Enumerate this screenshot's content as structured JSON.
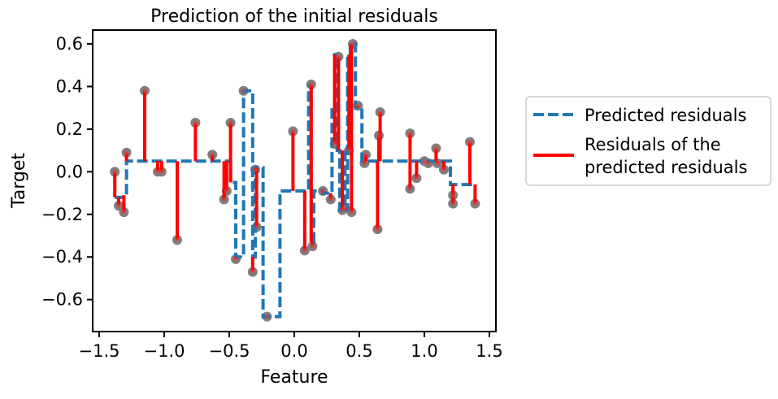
{
  "chart_data": {
    "type": "line",
    "title": "Prediction of the initial residuals",
    "xlabel": "Feature",
    "ylabel": "Target",
    "xlim": [
      -1.55,
      1.55
    ],
    "ylim": [
      -0.75,
      0.665
    ],
    "xticks": [
      -1.5,
      -1.0,
      -0.5,
      0.0,
      0.5,
      1.0,
      1.5
    ],
    "xtick_labels": [
      "−1.5",
      "−1.0",
      "−0.5",
      "0.0",
      "0.5",
      "1.0",
      "1.5"
    ],
    "yticks": [
      -0.6,
      -0.4,
      -0.2,
      0.0,
      0.2,
      0.4,
      0.6
    ],
    "ytick_labels": [
      "−0.6",
      "−0.4",
      "−0.2",
      "0.0",
      "0.2",
      "0.4",
      "0.6"
    ],
    "grid": false,
    "legend": {
      "placement": "outside-right",
      "entries": [
        {
          "label": "Predicted residuals",
          "style": "dashed",
          "color": "#1f77b4"
        },
        {
          "label_lines": [
            "Residuals of the",
            "predicted residuals"
          ],
          "style": "solid",
          "color": "#ff0000"
        }
      ]
    },
    "points": [
      [
        -1.38,
        0.0
      ],
      [
        -1.35,
        -0.16
      ],
      [
        -1.31,
        -0.19
      ],
      [
        -1.29,
        0.09
      ],
      [
        -1.15,
        0.38
      ],
      [
        -1.05,
        0.0
      ],
      [
        -1.02,
        0.0
      ],
      [
        -0.9,
        -0.32
      ],
      [
        -0.76,
        0.23
      ],
      [
        -0.63,
        0.08
      ],
      [
        -0.54,
        -0.13
      ],
      [
        -0.52,
        -0.09
      ],
      [
        -0.49,
        0.23
      ],
      [
        -0.45,
        -0.41
      ],
      [
        -0.39,
        0.38
      ],
      [
        -0.32,
        -0.47
      ],
      [
        -0.3,
        0.01
      ],
      [
        -0.29,
        -0.26
      ],
      [
        -0.21,
        -0.68
      ],
      [
        -0.01,
        0.19
      ],
      [
        0.08,
        -0.37
      ],
      [
        0.13,
        0.41
      ],
      [
        0.14,
        -0.35
      ],
      [
        0.22,
        -0.09
      ],
      [
        0.28,
        -0.13
      ],
      [
        0.31,
        0.13
      ],
      [
        0.34,
        0.54
      ],
      [
        0.37,
        -0.18
      ],
      [
        0.39,
        -0.17
      ],
      [
        0.42,
        0.1
      ],
      [
        0.44,
        -0.19
      ],
      [
        0.45,
        0.6
      ],
      [
        0.49,
        0.31
      ],
      [
        0.54,
        0.04
      ],
      [
        0.55,
        0.08
      ],
      [
        0.64,
        -0.27
      ],
      [
        0.65,
        0.17
      ],
      [
        0.66,
        0.28
      ],
      [
        0.89,
        0.18
      ],
      [
        0.89,
        -0.08
      ],
      [
        0.94,
        -0.03
      ],
      [
        1.0,
        0.05
      ],
      [
        1.03,
        0.04
      ],
      [
        1.09,
        0.11
      ],
      [
        1.1,
        0.04
      ],
      [
        1.15,
        0.01
      ],
      [
        1.22,
        -0.15
      ],
      [
        1.22,
        -0.11
      ],
      [
        1.35,
        0.14
      ],
      [
        1.39,
        -0.15
      ]
    ],
    "series": [
      {
        "name": "Predicted residuals",
        "kind": "step",
        "x": [
          -1.38,
          -1.35,
          -1.31,
          -1.29,
          -0.52,
          -0.49,
          -0.45,
          -0.42,
          -0.39,
          -0.35,
          -0.32,
          -0.3,
          -0.28,
          -0.24,
          -0.21,
          -0.11,
          -0.09,
          0.11,
          0.13,
          0.15,
          0.17,
          0.22,
          0.26,
          0.29,
          0.31,
          0.33,
          0.35,
          0.37,
          0.39,
          0.41,
          0.43,
          0.44,
          0.47,
          0.52,
          1.2,
          1.29,
          1.4
        ],
        "y": [
          -0.12,
          -0.12,
          -0.11,
          0.05,
          0.05,
          -0.05,
          -0.4,
          -0.4,
          0.38,
          0.38,
          -0.4,
          0.02,
          0.02,
          -0.68,
          -0.68,
          -0.09,
          -0.09,
          0.4,
          -0.33,
          -0.09,
          -0.09,
          -0.1,
          -0.1,
          0.3,
          0.55,
          0.1,
          -0.18,
          0.1,
          -0.18,
          0.55,
          0.6,
          0.6,
          0.3,
          0.05,
          -0.06,
          -0.06,
          -0.06
        ]
      },
      {
        "name": "Residuals of the predicted residuals",
        "kind": "segments"
      }
    ]
  }
}
